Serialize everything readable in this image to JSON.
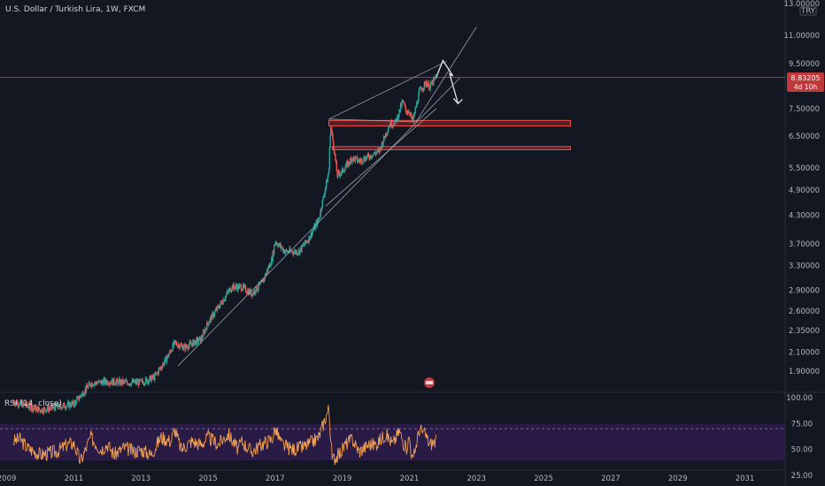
{
  "header": {
    "symbol_title": "U.S. Dollar / Turkish Lira, 1W, FXCM"
  },
  "currency": {
    "code": "TRY"
  },
  "price_badge": {
    "value": "8.83205",
    "countdown": "4d 10h"
  },
  "indicator": {
    "label": "RSI (14, close)"
  },
  "colors": {
    "background": "#131722",
    "up": "#26a69a",
    "down": "#ef5350",
    "rsi_line": "#f0a050",
    "rsi_band": "#3a1f5e",
    "price_line": "#c0393b",
    "zone_fill": "#8b2a2a",
    "trendline": "#b2b5be",
    "projection": "#e0e3eb"
  },
  "chart_data": [
    {
      "type": "candlestick",
      "title": "U.S. Dollar / Turkish Lira, 1W, FXCM",
      "y_scale": "log",
      "ylim": [
        1.7,
        13.0
      ],
      "xlim": [
        2008.8,
        2032.2
      ],
      "y_ticks": [
        "13.00000",
        "11.00000",
        "9.50000",
        "8.83205",
        "7.50000",
        "6.50000",
        "5.50000",
        "4.90000",
        "4.30000",
        "3.70000",
        "3.30000",
        "2.90000",
        "2.60000",
        "2.35000",
        "2.10000",
        "1.90000"
      ],
      "x_ticks": [
        "2009",
        "2011",
        "2013",
        "2015",
        "2017",
        "2019",
        "2021",
        "2023",
        "2025",
        "2027",
        "2029",
        "2031"
      ],
      "last_price": 8.83205,
      "price_path": [
        [
          2009.2,
          1.62
        ],
        [
          2010.0,
          1.55
        ],
        [
          2011.0,
          1.6
        ],
        [
          2011.5,
          1.78
        ],
        [
          2012.0,
          1.8
        ],
        [
          2012.5,
          1.79
        ],
        [
          2013.0,
          1.79
        ],
        [
          2013.4,
          1.84
        ],
        [
          2013.8,
          2.05
        ],
        [
          2014.0,
          2.2
        ],
        [
          2014.3,
          2.15
        ],
        [
          2014.8,
          2.25
        ],
        [
          2015.0,
          2.45
        ],
        [
          2015.3,
          2.65
        ],
        [
          2015.7,
          2.95
        ],
        [
          2016.0,
          2.95
        ],
        [
          2016.3,
          2.85
        ],
        [
          2016.6,
          3.0
        ],
        [
          2016.9,
          3.4
        ],
        [
          2017.0,
          3.75
        ],
        [
          2017.3,
          3.55
        ],
        [
          2017.7,
          3.55
        ],
        [
          2018.0,
          3.8
        ],
        [
          2018.3,
          4.2
        ],
        [
          2018.6,
          5.4
        ],
        [
          2018.65,
          6.9
        ],
        [
          2018.75,
          6.1
        ],
        [
          2018.85,
          5.3
        ],
        [
          2019.0,
          5.4
        ],
        [
          2019.3,
          5.8
        ],
        [
          2019.5,
          5.7
        ],
        [
          2019.7,
          5.8
        ],
        [
          2019.9,
          5.9
        ],
        [
          2020.1,
          6.0
        ],
        [
          2020.4,
          6.9
        ],
        [
          2020.6,
          7.0
        ],
        [
          2020.8,
          7.8
        ],
        [
          2020.9,
          7.4
        ],
        [
          2021.0,
          7.4
        ],
        [
          2021.1,
          7.0
        ],
        [
          2021.3,
          8.2
        ],
        [
          2021.5,
          8.6
        ],
        [
          2021.6,
          8.4
        ],
        [
          2021.8,
          8.83
        ]
      ],
      "horizontal_lines": [
        8.83205
      ],
      "zones": [
        {
          "x0": 2018.6,
          "x1": 2025.8,
          "y0": 6.85,
          "y1": 7.05
        },
        {
          "x0": 2018.7,
          "x1": 2025.8,
          "y0": 6.05,
          "y1": 6.15
        }
      ],
      "trendlines": [
        {
          "from": [
            2018.6,
            7.1
          ],
          "to": [
            2022.1,
            9.6
          ]
        },
        {
          "from": [
            2018.6,
            7.1
          ],
          "to": [
            2021.2,
            7.0
          ]
        },
        {
          "from": [
            2021.2,
            7.0
          ],
          "to": [
            2023.0,
            11.5
          ]
        },
        {
          "from": [
            2014.1,
            1.95
          ],
          "to": [
            2022.5,
            8.8
          ]
        },
        {
          "from": [
            2018.5,
            4.5
          ],
          "to": [
            2021.8,
            7.5
          ]
        }
      ],
      "projection": [
        [
          2021.8,
          8.83
        ],
        [
          2022.0,
          9.65
        ],
        [
          2022.3,
          8.9
        ],
        [
          2022.2,
          9.0
        ],
        [
          2022.45,
          7.7
        ]
      ]
    },
    {
      "type": "line",
      "title": "RSI (14, close)",
      "ylim": [
        25,
        100
      ],
      "y_ticks": [
        "100.00",
        "75.00",
        "50.00",
        "25.00"
      ],
      "band": [
        30,
        70
      ],
      "series": [
        {
          "values": [
            [
              2009.2,
              58
            ],
            [
              2009.4,
              60
            ],
            [
              2009.6,
              52
            ],
            [
              2010.0,
              45
            ],
            [
              2010.5,
              48
            ],
            [
              2010.8,
              55
            ],
            [
              2011.0,
              56
            ],
            [
              2011.2,
              38
            ],
            [
              2011.5,
              62
            ],
            [
              2011.8,
              50
            ],
            [
              2012.0,
              55
            ],
            [
              2012.2,
              45
            ],
            [
              2012.5,
              52
            ],
            [
              2012.8,
              48
            ],
            [
              2013.0,
              50
            ],
            [
              2013.3,
              45
            ],
            [
              2013.6,
              62
            ],
            [
              2013.9,
              58
            ],
            [
              2014.0,
              70
            ],
            [
              2014.2,
              50
            ],
            [
              2014.5,
              58
            ],
            [
              2014.8,
              55
            ],
            [
              2015.0,
              62
            ],
            [
              2015.3,
              55
            ],
            [
              2015.6,
              65
            ],
            [
              2015.9,
              50
            ],
            [
              2016.0,
              58
            ],
            [
              2016.3,
              48
            ],
            [
              2016.6,
              55
            ],
            [
              2016.9,
              60
            ],
            [
              2017.0,
              70
            ],
            [
              2017.2,
              55
            ],
            [
              2017.5,
              50
            ],
            [
              2017.8,
              52
            ],
            [
              2018.0,
              55
            ],
            [
              2018.3,
              62
            ],
            [
              2018.6,
              90
            ],
            [
              2018.7,
              40
            ],
            [
              2018.9,
              45
            ],
            [
              2019.1,
              55
            ],
            [
              2019.3,
              60
            ],
            [
              2019.5,
              48
            ],
            [
              2019.8,
              55
            ],
            [
              2020.0,
              55
            ],
            [
              2020.3,
              65
            ],
            [
              2020.5,
              55
            ],
            [
              2020.7,
              68
            ],
            [
              2020.9,
              50
            ],
            [
              2021.0,
              62
            ],
            [
              2021.1,
              38
            ],
            [
              2021.3,
              70
            ],
            [
              2021.5,
              63
            ],
            [
              2021.6,
              55
            ],
            [
              2021.8,
              58
            ]
          ]
        }
      ]
    }
  ]
}
